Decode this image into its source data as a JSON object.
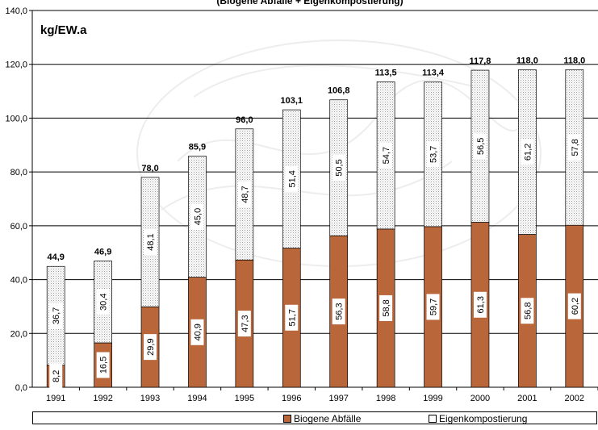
{
  "chart_data": {
    "type": "bar",
    "stacked": true,
    "title": "(Biogene Abfälle + Eigenkompostierung)",
    "unit_label": "kg/EW.a",
    "categories": [
      "1991",
      "1992",
      "1993",
      "1994",
      "1995",
      "1996",
      "1997",
      "1998",
      "1999",
      "2000",
      "2001",
      "2002"
    ],
    "series": [
      {
        "name": "Biogene Abfälle",
        "color": "#b8663a",
        "values": [
          8.2,
          16.5,
          29.9,
          40.9,
          47.3,
          51.7,
          56.3,
          58.8,
          59.7,
          61.3,
          56.8,
          60.2
        ],
        "labels": [
          "8,2",
          "16,5",
          "29,9",
          "40,9",
          "47,3",
          "51,7",
          "56,3",
          "58,8",
          "59,7",
          "61,3",
          "56,8",
          "60,2"
        ]
      },
      {
        "name": "Eigenkompostierung",
        "color": "#ffffff",
        "values": [
          36.7,
          30.4,
          48.1,
          45.0,
          48.7,
          51.4,
          50.5,
          54.7,
          53.7,
          56.5,
          61.2,
          57.8
        ],
        "labels": [
          "36,7",
          "30,4",
          "48,1",
          "45,0",
          "48,7",
          "51,4",
          "50,5",
          "54,7",
          "53,7",
          "56,5",
          "61,2",
          "57,8"
        ]
      }
    ],
    "totals": [
      44.9,
      46.9,
      78.0,
      85.9,
      96.0,
      103.1,
      106.8,
      113.5,
      113.4,
      117.8,
      118.0,
      118.0
    ],
    "total_labels": [
      "44,9",
      "46,9",
      "78,0",
      "85,9",
      "96,0",
      "103,1",
      "106,8",
      "113,5",
      "113,4",
      "117,8",
      "118,0",
      "118,0"
    ],
    "ylim": [
      0,
      140
    ],
    "yticks": [
      "0,0",
      "20,0",
      "40,0",
      "60,0",
      "80,0",
      "100,0",
      "120,0",
      "140,0"
    ],
    "grid": true,
    "legend_position": "bottom"
  }
}
